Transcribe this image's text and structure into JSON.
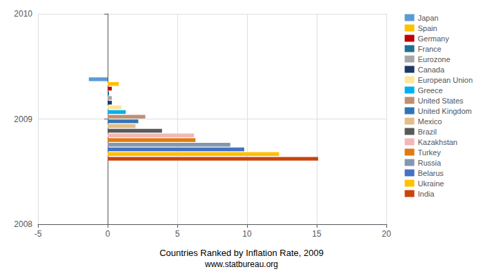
{
  "chart_data": {
    "type": "bar",
    "orientation": "horizontal",
    "title": "Countries Ranked by Inflation Rate, 2009",
    "subtitle": "www.statbureau.org",
    "x": [
      2009
    ],
    "series": [
      {
        "name": "Japan",
        "color": "#5b9bd5",
        "values": [
          -1.35
        ]
      },
      {
        "name": "Spain",
        "color": "#ffc000",
        "values": [
          0.8
        ]
      },
      {
        "name": "Germany",
        "color": "#c00000",
        "values": [
          0.3
        ]
      },
      {
        "name": "France",
        "color": "#1f7091",
        "values": [
          0.1
        ]
      },
      {
        "name": "Eurozone",
        "color": "#a6a6a6",
        "values": [
          0.3
        ]
      },
      {
        "name": "Canada",
        "color": "#1f3864",
        "values": [
          0.3
        ]
      },
      {
        "name": "European Union",
        "color": "#ffe699",
        "values": [
          1.0
        ]
      },
      {
        "name": "Greece",
        "color": "#00b0f0",
        "values": [
          1.3
        ]
      },
      {
        "name": "United States",
        "color": "#bf8f72",
        "values": [
          2.7
        ]
      },
      {
        "name": "United Kingdom",
        "color": "#2e75b6",
        "values": [
          2.2
        ]
      },
      {
        "name": "Mexico",
        "color": "#e2be8a",
        "values": [
          2.0
        ]
      },
      {
        "name": "Brazil",
        "color": "#595959",
        "values": [
          3.9
        ]
      },
      {
        "name": "Kazakhstan",
        "color": "#f4b7b7",
        "values": [
          6.2
        ]
      },
      {
        "name": "Turkey",
        "color": "#e07b10",
        "values": [
          6.3
        ]
      },
      {
        "name": "Russia",
        "color": "#8497b0",
        "values": [
          8.8
        ]
      },
      {
        "name": "Belarus",
        "color": "#4472c4",
        "values": [
          9.8
        ]
      },
      {
        "name": "Ukraine",
        "color": "#ffc000",
        "values": [
          12.3
        ]
      },
      {
        "name": "India",
        "color": "#c9440c",
        "values": [
          15.1
        ]
      }
    ],
    "xlim": [
      -5,
      20
    ],
    "xticks": [
      -5,
      0,
      5,
      10,
      15,
      20
    ],
    "ylim": [
      2008,
      2010
    ],
    "yticks": [
      2008,
      2009,
      2010
    ],
    "grid": true,
    "legend": "right"
  }
}
